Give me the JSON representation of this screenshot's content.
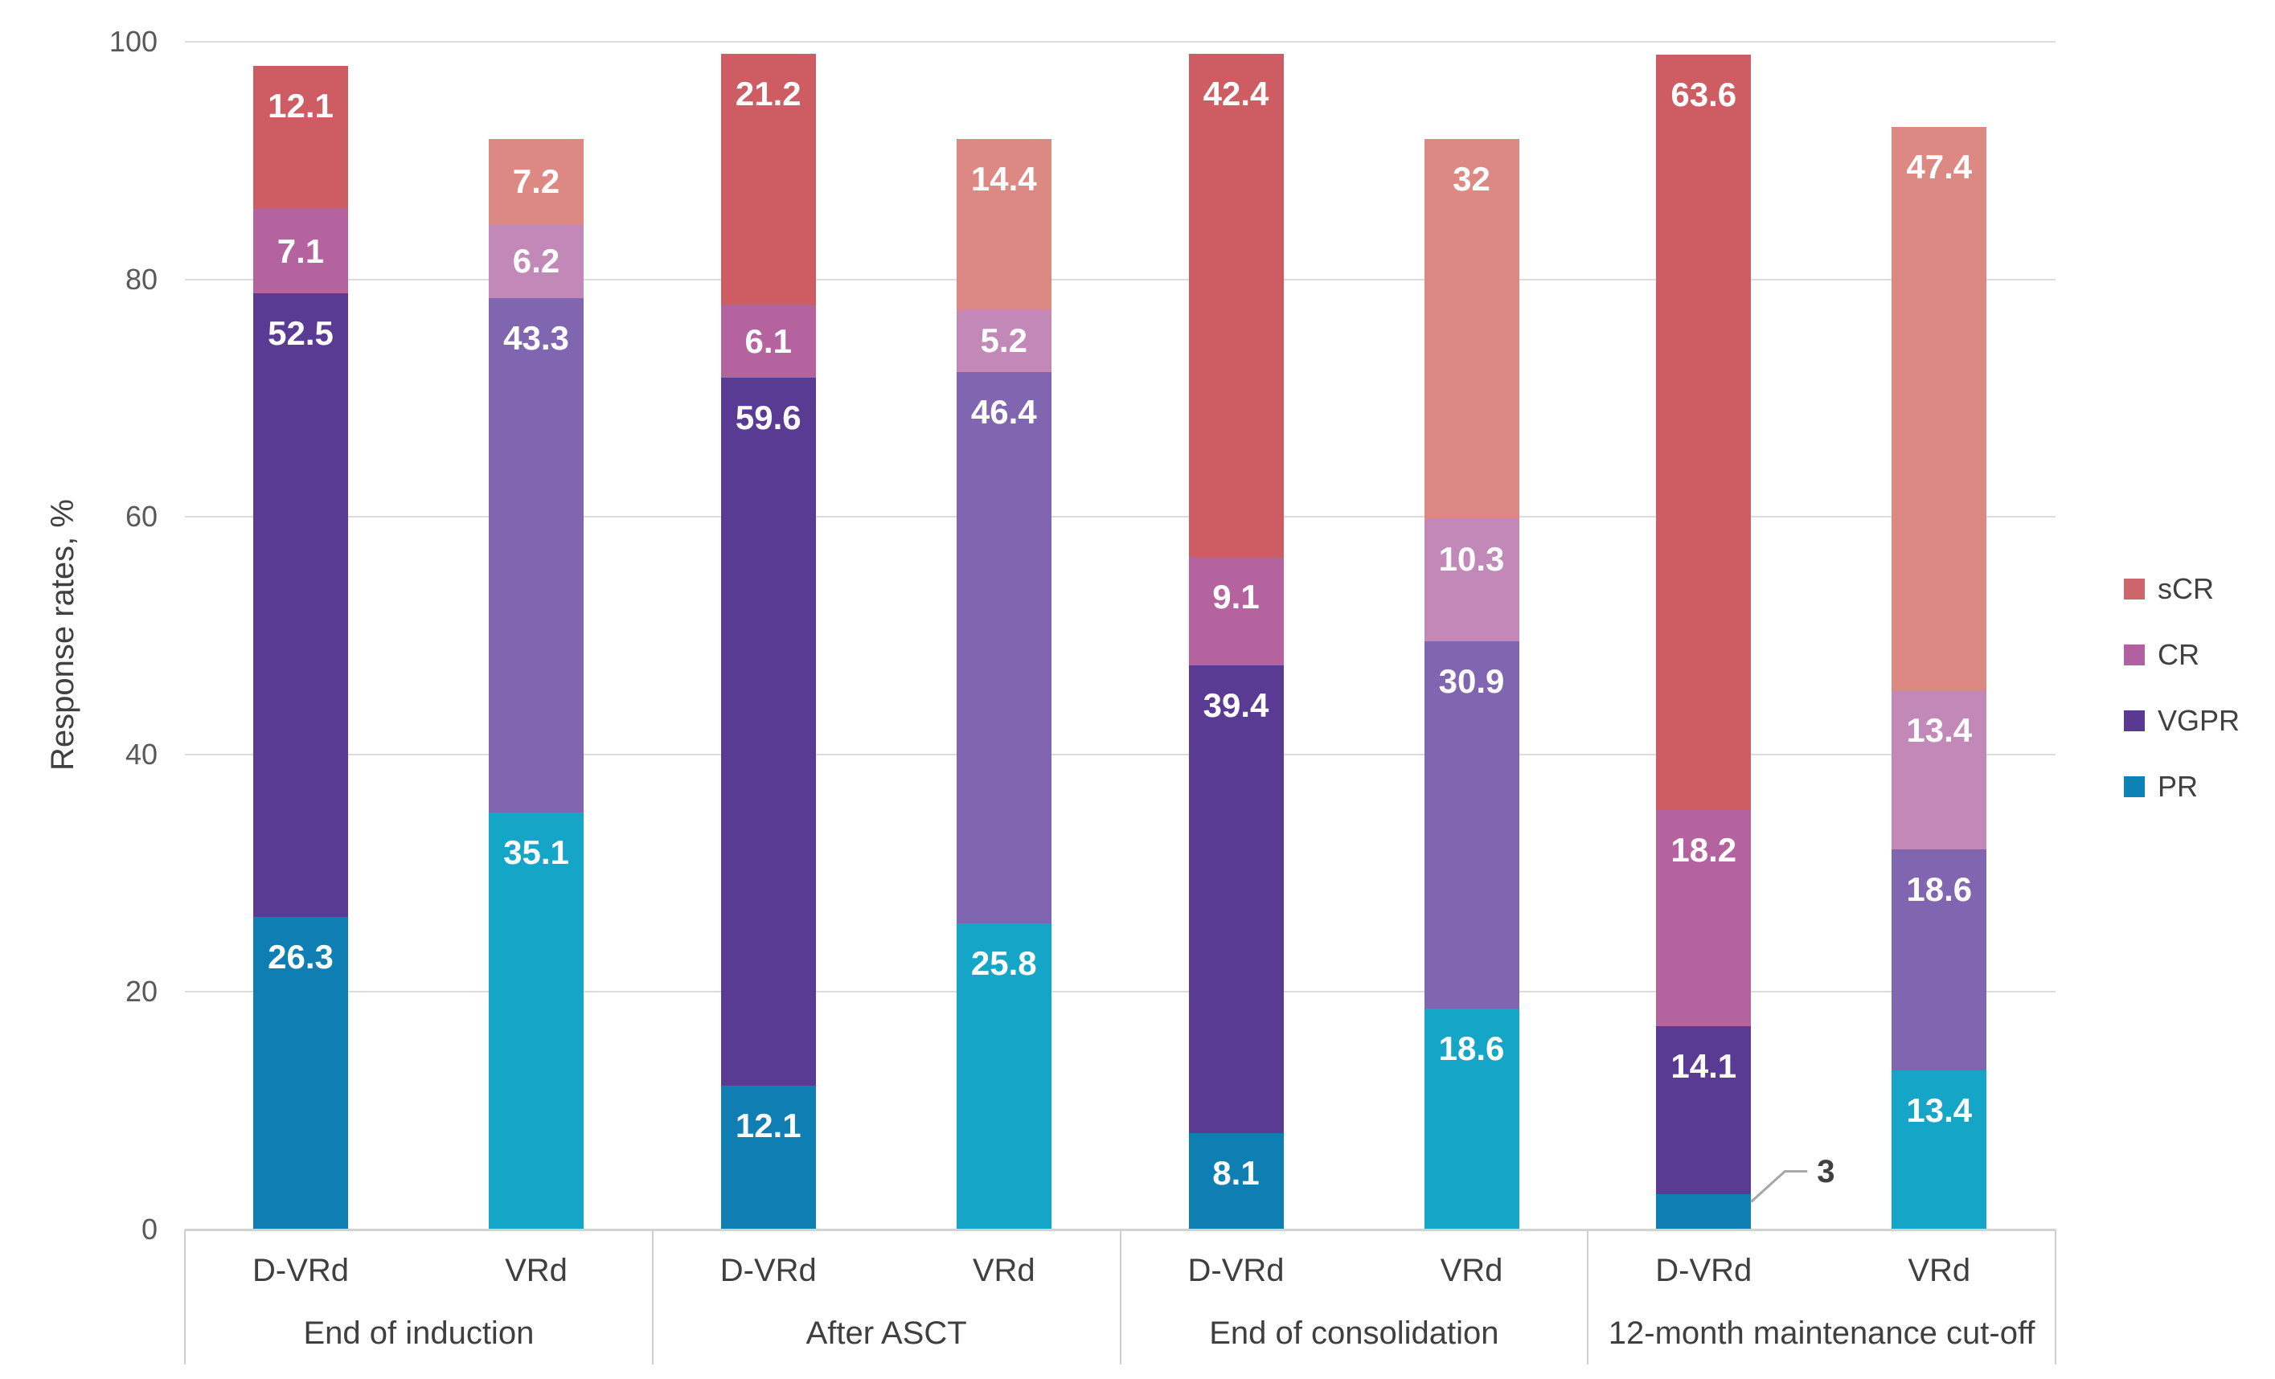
{
  "axis": {
    "y_title": "Response rates, %",
    "y_ticks": [
      "0",
      "20",
      "40",
      "60",
      "80",
      "100"
    ]
  },
  "legend": {
    "items": [
      {
        "label": "sCR",
        "color": "#cb666c"
      },
      {
        "label": "CR",
        "color": "#b0619f"
      },
      {
        "label": "VGPR",
        "color": "#5a3992"
      },
      {
        "label": "PR",
        "color": "#0d82b4"
      }
    ]
  },
  "chart_data": {
    "type": "bar",
    "stacked": true,
    "title": "",
    "xlabel": "",
    "ylabel": "Response rates, %",
    "ylim": [
      0,
      100
    ],
    "grid": true,
    "legend_position": "right",
    "series_order": [
      "PR",
      "VGPR",
      "CR",
      "sCR"
    ],
    "palettes": {
      "dark": {
        "PR": "#0f7eb2",
        "VGPR": "#5a3b94",
        "CR": "#b4639f",
        "sCR": "#ce5c63"
      },
      "light": {
        "PR": "#15a5c6",
        "VGPR": "#8066b0",
        "CR": "#c288b7",
        "sCR": "#dc8983"
      }
    },
    "groups": [
      {
        "label": "End of induction",
        "bars": [
          {
            "label": "D-VRd",
            "palette": "dark",
            "segments": [
              {
                "series": "PR",
                "value": 26.3,
                "label": "26.3"
              },
              {
                "series": "VGPR",
                "value": 52.5,
                "label": "52.5"
              },
              {
                "series": "CR",
                "value": 7.1,
                "label": "7.1"
              },
              {
                "series": "sCR",
                "value": 12.1,
                "label": "12.1"
              }
            ]
          },
          {
            "label": "VRd",
            "palette": "light",
            "segments": [
              {
                "series": "PR",
                "value": 35.1,
                "label": "35.1"
              },
              {
                "series": "VGPR",
                "value": 43.3,
                "label": "43.3"
              },
              {
                "series": "CR",
                "value": 6.2,
                "label": "6.2"
              },
              {
                "series": "sCR",
                "value": 7.2,
                "label": "7.2"
              }
            ]
          }
        ]
      },
      {
        "label": "After ASCT",
        "bars": [
          {
            "label": "D-VRd",
            "palette": "dark",
            "segments": [
              {
                "series": "PR",
                "value": 12.1,
                "label": "12.1"
              },
              {
                "series": "VGPR",
                "value": 59.6,
                "label": "59.6"
              },
              {
                "series": "CR",
                "value": 6.1,
                "label": "6.1"
              },
              {
                "series": "sCR",
                "value": 21.2,
                "label": "21.2"
              }
            ]
          },
          {
            "label": "VRd",
            "palette": "light",
            "segments": [
              {
                "series": "PR",
                "value": 25.8,
                "label": "25.8"
              },
              {
                "series": "VGPR",
                "value": 46.4,
                "label": "46.4"
              },
              {
                "series": "CR",
                "value": 5.2,
                "label": "5.2"
              },
              {
                "series": "sCR",
                "value": 14.4,
                "label": "14.4"
              }
            ]
          }
        ]
      },
      {
        "label": "End of consolidation",
        "bars": [
          {
            "label": "D-VRd",
            "palette": "dark",
            "segments": [
              {
                "series": "PR",
                "value": 8.1,
                "label": "8.1"
              },
              {
                "series": "VGPR",
                "value": 39.4,
                "label": "39.4"
              },
              {
                "series": "CR",
                "value": 9.1,
                "label": "9.1"
              },
              {
                "series": "sCR",
                "value": 42.4,
                "label": "42.4"
              }
            ]
          },
          {
            "label": "VRd",
            "palette": "light",
            "segments": [
              {
                "series": "PR",
                "value": 18.6,
                "label": "18.6"
              },
              {
                "series": "VGPR",
                "value": 30.9,
                "label": "30.9"
              },
              {
                "series": "CR",
                "value": 10.3,
                "label": "10.3"
              },
              {
                "series": "sCR",
                "value": 32,
                "label": "32"
              }
            ]
          }
        ]
      },
      {
        "label": "12-month maintenance cut-off",
        "bars": [
          {
            "label": "D-VRd",
            "palette": "dark",
            "segments": [
              {
                "series": "PR",
                "value": 3,
                "label": "3",
                "callout": true
              },
              {
                "series": "VGPR",
                "value": 14.1,
                "label": "14.1"
              },
              {
                "series": "CR",
                "value": 18.2,
                "label": "18.2"
              },
              {
                "series": "sCR",
                "value": 63.6,
                "label": "63.6"
              }
            ]
          },
          {
            "label": "VRd",
            "palette": "light",
            "segments": [
              {
                "series": "PR",
                "value": 13.4,
                "label": "13.4"
              },
              {
                "series": "VGPR",
                "value": 18.6,
                "label": "18.6"
              },
              {
                "series": "CR",
                "value": 13.4,
                "label": "13.4"
              },
              {
                "series": "sCR",
                "value": 47.4,
                "label": "47.4"
              }
            ]
          }
        ]
      }
    ]
  }
}
